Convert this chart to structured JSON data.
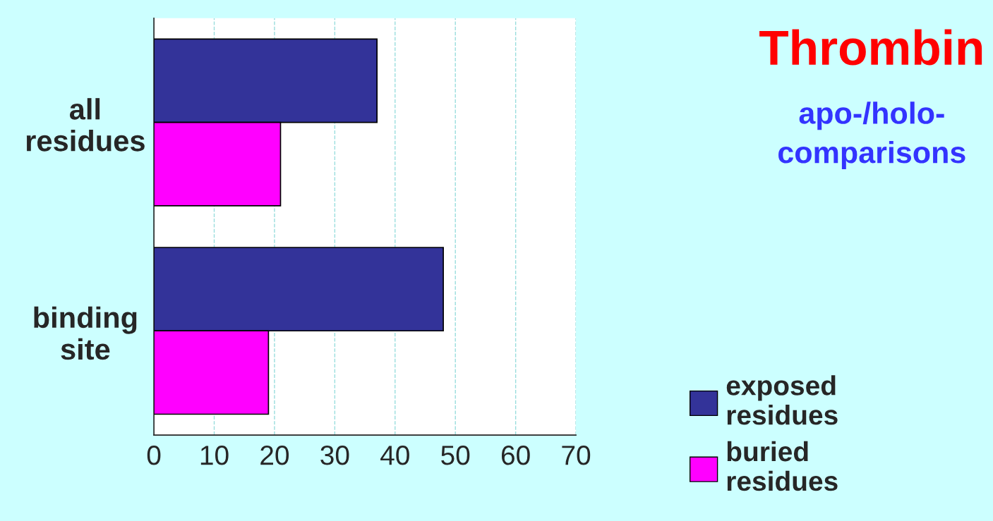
{
  "chart_data": {
    "type": "bar",
    "orientation": "horizontal",
    "title": "Thrombin",
    "subtitle": "apo-/holo-\ncomparisons",
    "categories": [
      "all\nresidues",
      "binding\nsite"
    ],
    "series": [
      {
        "name": "exposed\nresidues",
        "color": "#333399",
        "values": [
          37,
          48
        ]
      },
      {
        "name": "buried\nresidues",
        "color": "#ff00ff",
        "values": [
          21,
          19
        ]
      }
    ],
    "xlim": [
      0,
      70
    ],
    "xticks": [
      0,
      10,
      20,
      30,
      40,
      50,
      60,
      70
    ],
    "grid": "x",
    "legend": "bottom right"
  }
}
